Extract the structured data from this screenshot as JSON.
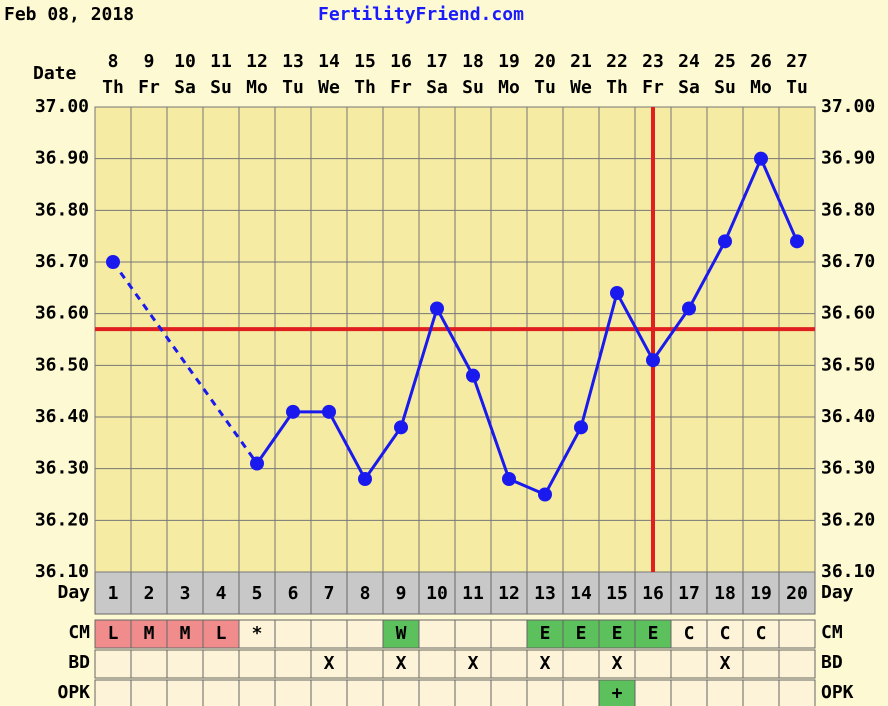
{
  "header": {
    "date": "Feb 08, 2018",
    "site": "FertilityFriend.com"
  },
  "chart_data": {
    "type": "line",
    "date_label": "Date",
    "dates": [
      "8",
      "9",
      "10",
      "11",
      "12",
      "13",
      "14",
      "15",
      "16",
      "17",
      "18",
      "19",
      "20",
      "21",
      "22",
      "23",
      "24",
      "25",
      "26",
      "27"
    ],
    "weekdays": [
      "Th",
      "Fr",
      "Sa",
      "Su",
      "Mo",
      "Tu",
      "We",
      "Th",
      "Fr",
      "Sa",
      "Su",
      "Mo",
      "Tu",
      "We",
      "Th",
      "Fr",
      "Sa",
      "Su",
      "Mo",
      "Tu"
    ],
    "values": [
      36.7,
      null,
      null,
      null,
      36.31,
      36.41,
      36.41,
      36.28,
      36.38,
      36.61,
      36.48,
      36.28,
      36.25,
      36.38,
      36.64,
      36.51,
      36.61,
      36.74,
      36.9,
      36.74
    ],
    "color": "#1a1aee",
    "ylim": [
      36.1,
      37.0
    ],
    "yticks": [
      {
        "value": 36.1,
        "label": "36.10"
      },
      {
        "value": 36.2,
        "label": "36.20"
      },
      {
        "value": 36.3,
        "label": "36.30"
      },
      {
        "value": 36.4,
        "label": "36.40"
      },
      {
        "value": 36.5,
        "label": "36.50"
      },
      {
        "value": 36.6,
        "label": "36.60"
      },
      {
        "value": 36.7,
        "label": "36.70"
      },
      {
        "value": 36.8,
        "label": "36.80"
      },
      {
        "value": 36.9,
        "label": "36.90"
      },
      {
        "value": 37.0,
        "label": "37.00"
      }
    ],
    "grid": true,
    "coverline": 36.57,
    "ovulation_day": 16,
    "marker_color": "#e02020",
    "rows": [
      {
        "label": "Day",
        "cells": [
          1,
          2,
          3,
          4,
          5,
          6,
          7,
          8,
          9,
          10,
          11,
          12,
          13,
          14,
          15,
          16,
          17,
          18,
          19,
          20
        ]
      },
      {
        "label": "CM",
        "cells": [
          "L",
          "M",
          "M",
          "L",
          "*",
          null,
          null,
          null,
          "W",
          null,
          null,
          null,
          "E",
          "E",
          "E",
          "E",
          "C",
          "C",
          "C",
          null
        ],
        "colors": [
          "#f08c8c",
          "#f08c8c",
          "#f08c8c",
          "#f08c8c",
          null,
          null,
          null,
          null,
          "#5cc05c",
          null,
          null,
          null,
          "#5cc05c",
          "#5cc05c",
          "#5cc05c",
          "#5cc05c",
          null,
          null,
          null,
          null
        ]
      },
      {
        "label": "BD",
        "cells": [
          null,
          null,
          null,
          null,
          null,
          null,
          "X",
          null,
          "X",
          null,
          "X",
          null,
          "X",
          null,
          "X",
          null,
          null,
          "X",
          null,
          null
        ]
      },
      {
        "label": "OPK",
        "cells": [
          null,
          null,
          null,
          null,
          null,
          null,
          null,
          null,
          null,
          null,
          null,
          null,
          null,
          null,
          "+",
          null,
          null,
          null,
          null,
          null
        ],
        "colors": [
          null,
          null,
          null,
          null,
          null,
          null,
          null,
          null,
          null,
          null,
          null,
          null,
          null,
          null,
          "#5cc05c",
          null,
          null,
          null,
          null,
          null
        ]
      }
    ]
  }
}
